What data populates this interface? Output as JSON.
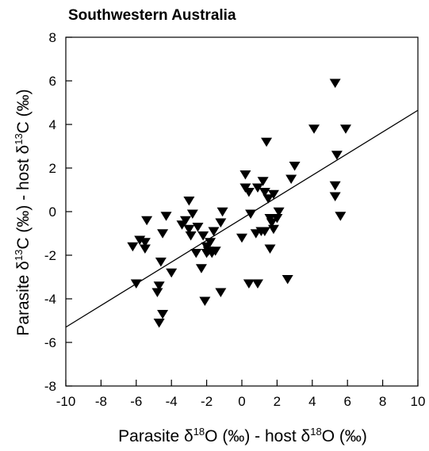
{
  "chart_data": {
    "type": "scatter",
    "title": "Southwestern Australia",
    "xlabel": {
      "main": "Parasite δ",
      "sup1": "18",
      "mid": "O (‰) - host δ",
      "sup2": "18",
      "end": "O (‰)"
    },
    "ylabel": {
      "main": "Parasite δ",
      "sup1": "13",
      "mid": "C (‰) - host δ",
      "sup2": "13",
      "end": "C (‰)"
    },
    "xlim": [
      -10,
      10
    ],
    "ylim": [
      -8,
      8
    ],
    "xticks": [
      -10,
      -8,
      -6,
      -4,
      -2,
      0,
      2,
      4,
      6,
      8,
      10
    ],
    "yticks": [
      -8,
      -6,
      -4,
      -2,
      0,
      2,
      4,
      6,
      8
    ],
    "grid": false,
    "marker": "filled-down-triangle",
    "regression_line": {
      "x": [
        -10,
        10
      ],
      "y": [
        -5.3,
        4.65
      ]
    },
    "points": [
      {
        "x": -6.2,
        "y": -1.6
      },
      {
        "x": -5.8,
        "y": -1.3
      },
      {
        "x": -5.5,
        "y": -1.4
      },
      {
        "x": -5.4,
        "y": -0.4
      },
      {
        "x": -5.5,
        "y": -1.7
      },
      {
        "x": -6.0,
        "y": -3.3
      },
      {
        "x": -4.7,
        "y": -3.4
      },
      {
        "x": -4.8,
        "y": -3.7
      },
      {
        "x": -4.6,
        "y": -2.3
      },
      {
        "x": -4.5,
        "y": -1.0
      },
      {
        "x": -4.3,
        "y": -0.2
      },
      {
        "x": -4.0,
        "y": -2.8
      },
      {
        "x": -4.5,
        "y": -4.7
      },
      {
        "x": -4.7,
        "y": -5.1
      },
      {
        "x": -3.4,
        "y": -0.6
      },
      {
        "x": -3.2,
        "y": -0.4
      },
      {
        "x": -3.0,
        "y": 0.5
      },
      {
        "x": -2.8,
        "y": -0.1
      },
      {
        "x": -3.0,
        "y": -0.8
      },
      {
        "x": -2.9,
        "y": -1.1
      },
      {
        "x": -2.6,
        "y": -1.9
      },
      {
        "x": -2.5,
        "y": -0.7
      },
      {
        "x": -2.3,
        "y": -2.6
      },
      {
        "x": -2.2,
        "y": -1.1
      },
      {
        "x": -2.0,
        "y": -1.6
      },
      {
        "x": -1.9,
        "y": -1.8
      },
      {
        "x": -2.0,
        "y": -1.9
      },
      {
        "x": -1.8,
        "y": -1.4
      },
      {
        "x": -1.7,
        "y": -1.9
      },
      {
        "x": -1.6,
        "y": -0.9
      },
      {
        "x": -1.5,
        "y": -1.8
      },
      {
        "x": -1.2,
        "y": -0.5
      },
      {
        "x": -1.1,
        "y": 0.0
      },
      {
        "x": -2.1,
        "y": -4.1
      },
      {
        "x": -1.2,
        "y": -3.7
      },
      {
        "x": 0.0,
        "y": -1.2
      },
      {
        "x": 0.2,
        "y": 1.7
      },
      {
        "x": 0.2,
        "y": 1.1
      },
      {
        "x": 0.4,
        "y": 0.9
      },
      {
        "x": 0.5,
        "y": -0.1
      },
      {
        "x": 0.8,
        "y": -1.0
      },
      {
        "x": 0.9,
        "y": 1.1
      },
      {
        "x": 1.1,
        "y": -0.9
      },
      {
        "x": 1.3,
        "y": -0.9
      },
      {
        "x": 1.2,
        "y": 1.4
      },
      {
        "x": 1.3,
        "y": 0.9
      },
      {
        "x": 1.5,
        "y": 0.6
      },
      {
        "x": 1.6,
        "y": -0.3
      },
      {
        "x": 1.4,
        "y": 3.2
      },
      {
        "x": 1.8,
        "y": 0.8
      },
      {
        "x": 1.7,
        "y": -0.5
      },
      {
        "x": 1.8,
        "y": -0.8
      },
      {
        "x": 2.0,
        "y": -0.3
      },
      {
        "x": 2.1,
        "y": 0.0
      },
      {
        "x": 1.6,
        "y": -1.7
      },
      {
        "x": 0.4,
        "y": -3.3
      },
      {
        "x": 0.9,
        "y": -3.3
      },
      {
        "x": 2.6,
        "y": -3.1
      },
      {
        "x": 2.8,
        "y": 1.5
      },
      {
        "x": 3.0,
        "y": 2.1
      },
      {
        "x": 4.1,
        "y": 3.8
      },
      {
        "x": 5.3,
        "y": 5.9
      },
      {
        "x": 5.4,
        "y": 2.6
      },
      {
        "x": 5.3,
        "y": 1.2
      },
      {
        "x": 5.3,
        "y": 0.7
      },
      {
        "x": 5.6,
        "y": -0.2
      },
      {
        "x": 5.9,
        "y": 3.8
      }
    ]
  }
}
